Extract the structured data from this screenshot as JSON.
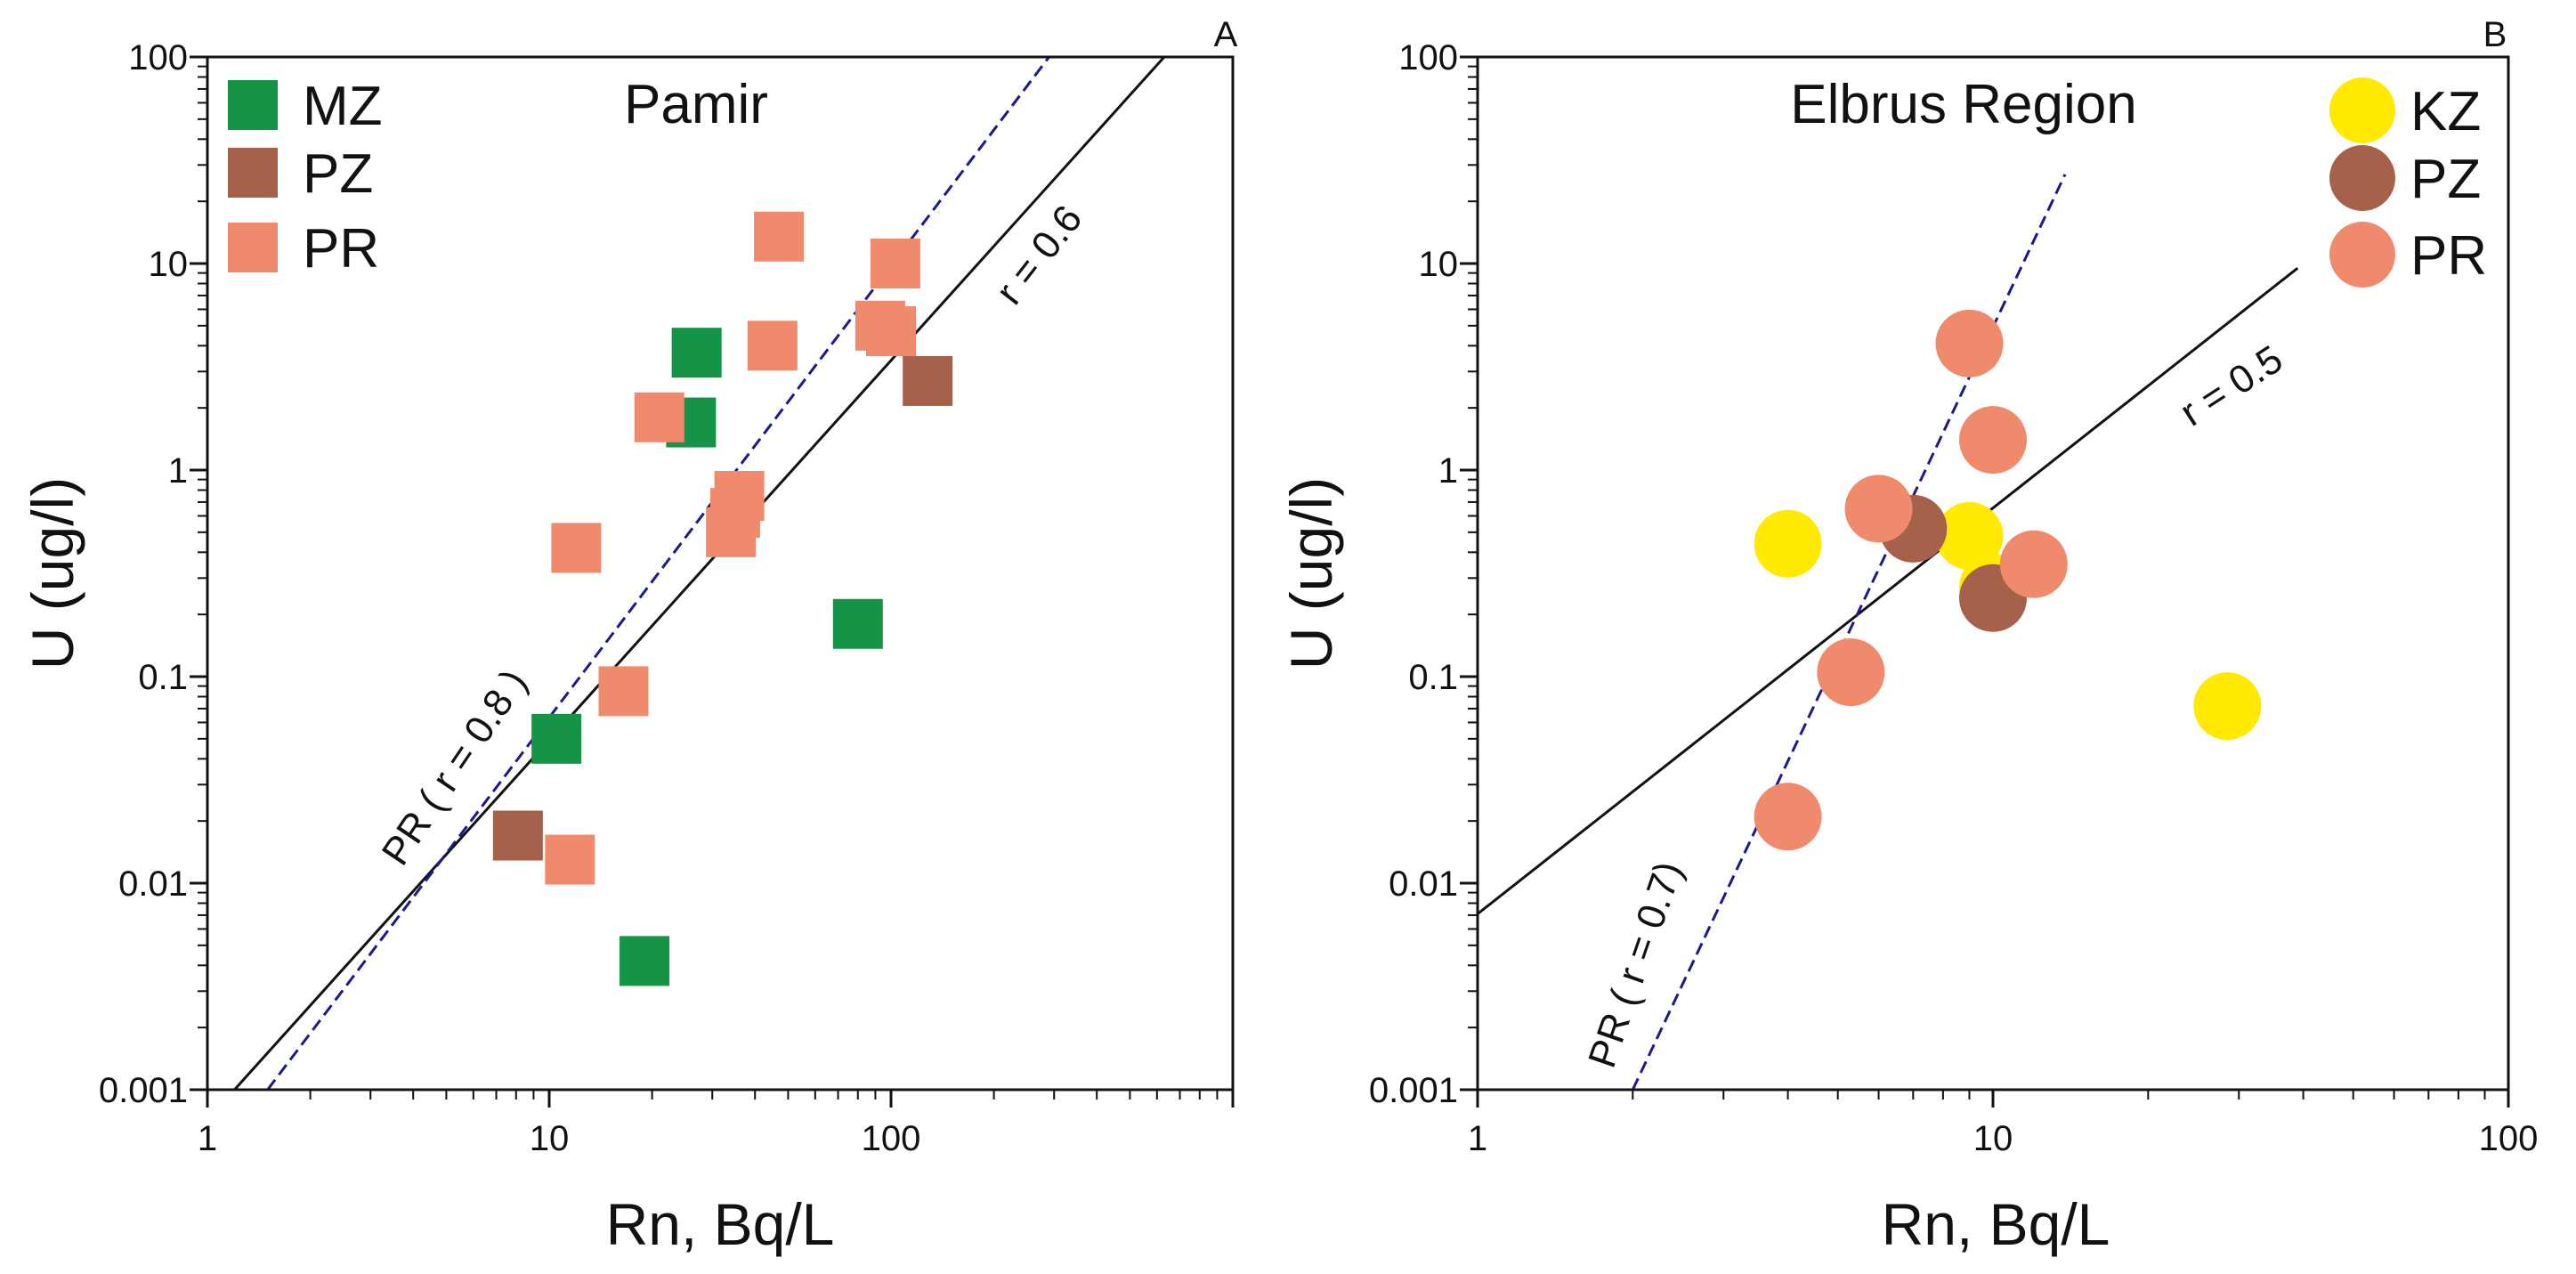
{
  "chart_data": [
    {
      "panel": "A",
      "type": "scatter",
      "title": "Pamir",
      "xlabel": "Rn, Bq/L",
      "ylabel": "U  (ug/l)",
      "xscale": "log",
      "yscale": "log",
      "xlim": [
        1,
        1000
      ],
      "ylim": [
        0.001,
        100
      ],
      "x_tick_labels": [
        "1",
        "10",
        "100"
      ],
      "y_tick_labels": [
        "0.001",
        "0.01",
        "0.1",
        "1",
        "10",
        "100"
      ],
      "marker": "square",
      "legend_position": "top-left",
      "series": [
        {
          "name": "MZ",
          "color": "#159447",
          "points": [
            [
              27,
              3.7
            ],
            [
              26,
              1.7
            ],
            [
              80,
              0.18
            ],
            [
              10.5,
              0.05
            ],
            [
              19,
              0.0042
            ]
          ]
        },
        {
          "name": "PZ",
          "color": "#a6614a",
          "points": [
            [
              128,
              2.7
            ],
            [
              8.1,
              0.017
            ]
          ]
        },
        {
          "name": "PR",
          "color": "#f08a6d",
          "points": [
            [
              47,
              13.5
            ],
            [
              103,
              10
            ],
            [
              93,
              5
            ],
            [
              100,
              4.7
            ],
            [
              45,
              4
            ],
            [
              21,
              1.8
            ],
            [
              36,
              0.75
            ],
            [
              35,
              0.62
            ],
            [
              34,
              0.5
            ],
            [
              12,
              0.42
            ],
            [
              16.5,
              0.085
            ],
            [
              11.5,
              0.013
            ]
          ]
        }
      ],
      "lines": [
        {
          "label": "r = 0.6",
          "style": "solid",
          "color": "#111111",
          "from": [
            1.2,
            0.001
          ],
          "to": [
            630,
            100
          ]
        },
        {
          "label": "PR ( r = 0.8 )",
          "style": "dashed",
          "color": "#1a1a8c",
          "from": [
            1.5,
            0.001
          ],
          "to": [
            290,
            100
          ]
        }
      ]
    },
    {
      "panel": "B",
      "type": "scatter",
      "title": "Elbrus Region",
      "xlabel": "Rn, Bq/L",
      "ylabel": "U  (ug/l)",
      "xscale": "log",
      "yscale": "log",
      "xlim": [
        1,
        100
      ],
      "ylim": [
        0.001,
        100
      ],
      "x_tick_labels": [
        "1",
        "10",
        "100"
      ],
      "y_tick_labels": [
        "0.001",
        "0.01",
        "0.1",
        "1",
        "10",
        "100"
      ],
      "marker": "circle",
      "legend_position": "top-right",
      "series": [
        {
          "name": "KZ",
          "color": "#ffea00",
          "points": [
            [
              4,
              0.44
            ],
            [
              9,
              0.48
            ],
            [
              10,
              0.27
            ],
            [
              28.5,
              0.072
            ]
          ]
        },
        {
          "name": "PZ",
          "color": "#a6614a",
          "points": [
            [
              7,
              0.52
            ],
            [
              10,
              0.24
            ]
          ]
        },
        {
          "name": "PR",
          "color": "#f08a6d",
          "points": [
            [
              9,
              4.1
            ],
            [
              10,
              1.4
            ],
            [
              6,
              0.65
            ],
            [
              12,
              0.35
            ],
            [
              5.3,
              0.105
            ],
            [
              4,
              0.021
            ]
          ]
        }
      ],
      "lines": [
        {
          "label": "r = 0.5",
          "style": "solid",
          "color": "#111111",
          "from": [
            1,
            0.0071
          ],
          "to": [
            39,
            9.5
          ]
        },
        {
          "label": "PR ( r = 0.7)",
          "style": "dashed",
          "color": "#1a1a8c",
          "from": [
            2,
            0.001
          ],
          "to": [
            13.8,
            27
          ]
        }
      ]
    }
  ]
}
